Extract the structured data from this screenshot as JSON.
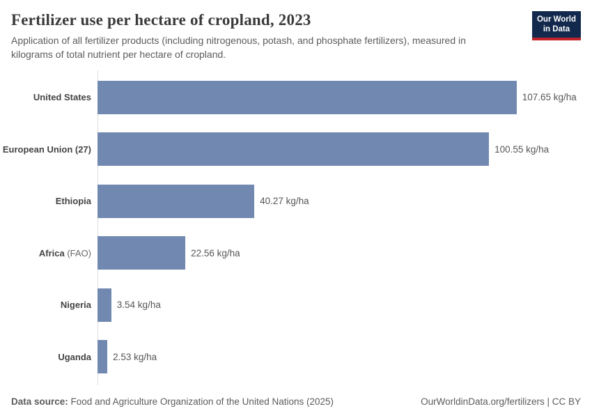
{
  "header": {
    "title": "Fertilizer use per hectare of cropland, 2023",
    "subtitle": "Application of all fertilizer products (including nitrogenous, potash, and phosphate fertilizers), measured in kilograms of total nutrient per hectare of cropland.",
    "logo": {
      "line1": "Our World",
      "line2": "in Data"
    }
  },
  "chart_data": {
    "type": "bar",
    "orientation": "horizontal",
    "title": "Fertilizer use per hectare of cropland, 2023",
    "unit": "kg/ha",
    "categories": [
      "United States",
      "European Union (27)",
      "Ethiopia",
      "Africa (FAO)",
      "Nigeria",
      "Uganda"
    ],
    "values": [
      107.65,
      100.55,
      40.27,
      22.56,
      3.54,
      2.53
    ],
    "xlim": [
      0,
      107.65
    ],
    "grid": "off",
    "bar_color": "#7189b1",
    "rows": [
      {
        "name": "United States",
        "suffix": "",
        "value": 107.65,
        "value_label": "107.65 kg/ha"
      },
      {
        "name": "European Union (27)",
        "suffix": "",
        "value": 100.55,
        "value_label": "100.55 kg/ha"
      },
      {
        "name": "Ethiopia",
        "suffix": "",
        "value": 40.27,
        "value_label": "40.27 kg/ha"
      },
      {
        "name": "Africa",
        "suffix": " (FAO)",
        "value": 22.56,
        "value_label": "22.56 kg/ha"
      },
      {
        "name": "Nigeria",
        "suffix": "",
        "value": 3.54,
        "value_label": "3.54 kg/ha"
      },
      {
        "name": "Uganda",
        "suffix": "",
        "value": 2.53,
        "value_label": "2.53 kg/ha"
      }
    ]
  },
  "footer": {
    "source_label": "Data source:",
    "source_text": " Food and Agriculture Organization of the United Nations (2025)",
    "right_text": "OurWorldinData.org/fertilizers | CC BY"
  }
}
